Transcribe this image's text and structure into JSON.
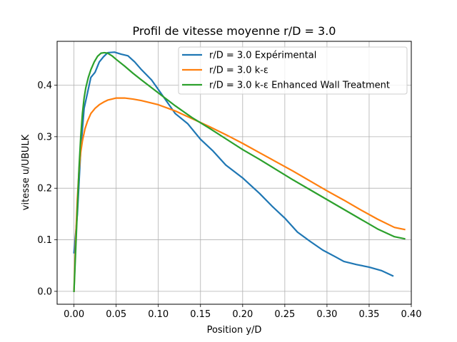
{
  "chart_data": {
    "type": "line",
    "title": "Profil de vitesse moyenne r/D = 3.0",
    "xlabel": "Position y/D",
    "ylabel": "vitesse u/UBULK",
    "xlim": [
      -0.02,
      0.4
    ],
    "ylim": [
      -0.025,
      0.485
    ],
    "xticks": [
      0.0,
      0.05,
      0.1,
      0.15,
      0.2,
      0.25,
      0.3,
      0.35,
      0.4
    ],
    "xtick_labels": [
      "0.00",
      "0.05",
      "0.10",
      "0.15",
      "0.20",
      "0.25",
      "0.30",
      "0.35",
      "0.40"
    ],
    "yticks": [
      0.0,
      0.1,
      0.2,
      0.3,
      0.4
    ],
    "ytick_labels": [
      "0.0",
      "0.1",
      "0.2",
      "0.3",
      "0.4"
    ],
    "grid": true,
    "legend_position": "upper right",
    "series": [
      {
        "name": "r/D = 3.0 Expérimental",
        "color": "#1f77b4",
        "x": [
          0.0,
          0.004,
          0.008,
          0.012,
          0.016,
          0.02,
          0.025,
          0.03,
          0.035,
          0.04,
          0.048,
          0.056,
          0.064,
          0.072,
          0.08,
          0.092,
          0.105,
          0.12,
          0.135,
          0.15,
          0.165,
          0.18,
          0.2,
          0.22,
          0.235,
          0.25,
          0.265,
          0.28,
          0.295,
          0.31,
          0.32,
          0.335,
          0.35,
          0.365,
          0.378
        ],
        "y": [
          0.075,
          0.15,
          0.275,
          0.355,
          0.385,
          0.415,
          0.425,
          0.445,
          0.455,
          0.463,
          0.464,
          0.46,
          0.457,
          0.445,
          0.43,
          0.41,
          0.38,
          0.345,
          0.325,
          0.295,
          0.272,
          0.245,
          0.22,
          0.19,
          0.165,
          0.142,
          0.115,
          0.097,
          0.08,
          0.067,
          0.058,
          0.052,
          0.047,
          0.04,
          0.03
        ]
      },
      {
        "name": "r/D = 3.0 k-ε",
        "color": "#ff7f0e",
        "x": [
          0.0,
          0.002,
          0.004,
          0.006,
          0.008,
          0.01,
          0.013,
          0.016,
          0.02,
          0.025,
          0.03,
          0.035,
          0.04,
          0.045,
          0.05,
          0.055,
          0.06,
          0.07,
          0.08,
          0.09,
          0.1,
          0.12,
          0.14,
          0.16,
          0.18,
          0.2,
          0.22,
          0.24,
          0.26,
          0.28,
          0.3,
          0.32,
          0.34,
          0.36,
          0.38,
          0.392
        ],
        "y": [
          0.0,
          0.1,
          0.18,
          0.235,
          0.27,
          0.292,
          0.315,
          0.33,
          0.345,
          0.355,
          0.362,
          0.367,
          0.371,
          0.373,
          0.375,
          0.375,
          0.375,
          0.373,
          0.37,
          0.366,
          0.362,
          0.35,
          0.335,
          0.32,
          0.304,
          0.287,
          0.269,
          0.251,
          0.233,
          0.214,
          0.195,
          0.177,
          0.158,
          0.14,
          0.124,
          0.12
        ]
      },
      {
        "name": "r/D = 3.0 k-ε Enhanced Wall Treatment",
        "color": "#2ca02c",
        "x": [
          0.0,
          0.002,
          0.004,
          0.006,
          0.008,
          0.01,
          0.012,
          0.014,
          0.017,
          0.02,
          0.024,
          0.028,
          0.032,
          0.036,
          0.04,
          0.045,
          0.05,
          0.06,
          0.07,
          0.08,
          0.1,
          0.12,
          0.14,
          0.16,
          0.18,
          0.2,
          0.22,
          0.24,
          0.26,
          0.28,
          0.3,
          0.32,
          0.34,
          0.36,
          0.38,
          0.392
        ],
        "y": [
          0.0,
          0.08,
          0.16,
          0.24,
          0.3,
          0.345,
          0.375,
          0.395,
          0.415,
          0.43,
          0.445,
          0.456,
          0.462,
          0.463,
          0.462,
          0.457,
          0.45,
          0.437,
          0.423,
          0.41,
          0.385,
          0.36,
          0.337,
          0.317,
          0.296,
          0.275,
          0.256,
          0.236,
          0.216,
          0.197,
          0.178,
          0.159,
          0.14,
          0.121,
          0.106,
          0.102
        ]
      }
    ]
  }
}
